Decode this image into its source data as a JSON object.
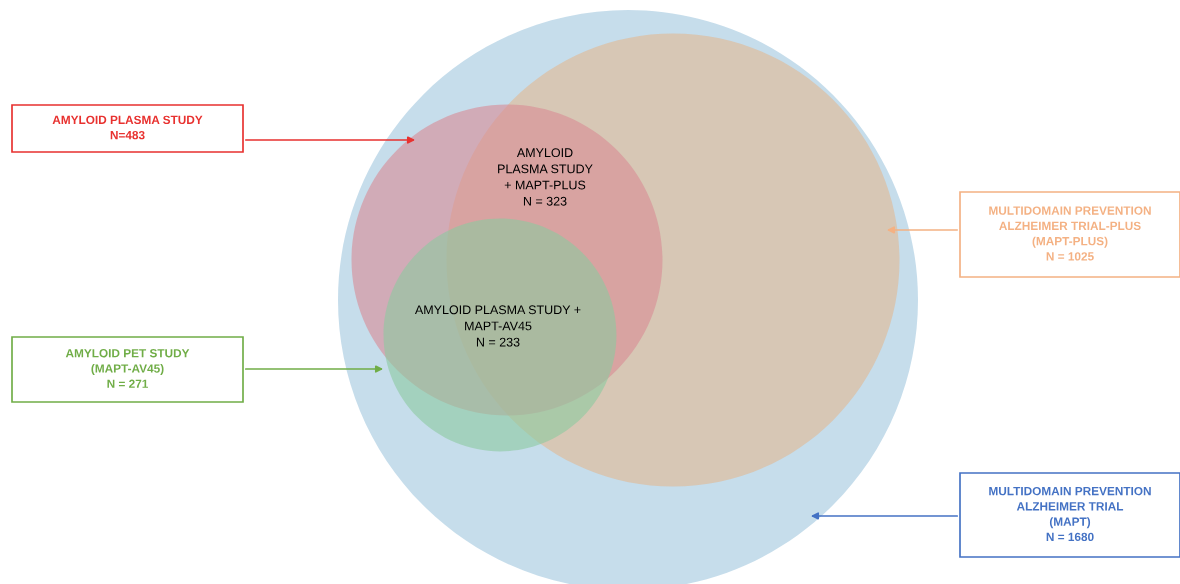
{
  "chart_data": {
    "type": "other",
    "categories": [
      "AMYLOID PLASMA STUDY",
      "AMYLOID PET STUDY\n(MAPT-AV45)",
      "MULTIDOMAIN PREVENTION\nALZHEIMER TRIAL-PLUS\n(MAPT-PLUS)",
      "MULTIDOMAIN PREVENTION\nALZHEIMER TRIAL\n(MAPT)"
    ],
    "values": [
      483,
      271,
      1025,
      1680
    ],
    "value_labels": [
      "N=483",
      "N = 271",
      "N = 1025",
      "N = 1680"
    ],
    "colors": [
      "#e8312f",
      "#70ad47",
      "#f4b183",
      "#4472c4"
    ],
    "annotations": [
      "AMYLOID\nPLASMA STUDY\n+ MAPT-PLUS\nN = 323",
      "AMYLOID PLASMA STUDY +\nMAPT-AV45\nN = 233"
    ]
  }
}
